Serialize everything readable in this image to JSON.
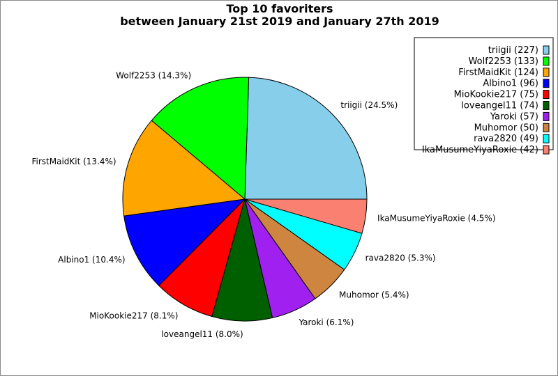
{
  "chart_data": {
    "type": "pie",
    "title": "Top 10 favoriters",
    "subtitle": "between January 21st 2019 and January 27th 2019",
    "legend_position": "top-right",
    "start_angle": "3 o'clock, counterclockwise",
    "slices": [
      {
        "name": "triigii",
        "value": 227,
        "percent_label": "triigii (24.5%)",
        "legend_label": "triigii (227)",
        "color": "#87CEEB"
      },
      {
        "name": "Wolf2253",
        "value": 133,
        "percent_label": "Wolf2253 (14.3%)",
        "legend_label": "Wolf2253 (133)",
        "color": "#00FF00"
      },
      {
        "name": "FirstMaidKit",
        "value": 124,
        "percent_label": "FirstMaidKit (13.4%)",
        "legend_label": "FirstMaidKit (124)",
        "color": "#FFA500"
      },
      {
        "name": "Albino1",
        "value": 96,
        "percent_label": "Albino1 (10.4%)",
        "legend_label": "Albino1 (96)",
        "color": "#0000FF"
      },
      {
        "name": "MioKookie217",
        "value": 75,
        "percent_label": "MioKookie217 (8.1%)",
        "legend_label": "MioKookie217 (75)",
        "color": "#FF0000"
      },
      {
        "name": "loveangel11",
        "value": 74,
        "percent_label": "loveangel11 (8.0%)",
        "legend_label": "loveangel11 (74)",
        "color": "#006000"
      },
      {
        "name": "Yaroki",
        "value": 57,
        "percent_label": "Yaroki (6.1%)",
        "legend_label": "Yaroki (57)",
        "color": "#A020F0"
      },
      {
        "name": "Muhomor",
        "value": 50,
        "percent_label": "Muhomor (5.4%)",
        "legend_label": "Muhomor (50)",
        "color": "#CD853F"
      },
      {
        "name": "rava2820",
        "value": 49,
        "percent_label": "rava2820 (5.3%)",
        "legend_label": "rava2820 (49)",
        "color": "#00FFFF"
      },
      {
        "name": "IkaMusumeYiyaRoxie",
        "value": 42,
        "percent_label": "IkaMusumeYiyaRoxie (4.5%)",
        "legend_label": "IkaMusumeYiyaRoxie (42)",
        "color": "#FA8072"
      }
    ]
  }
}
